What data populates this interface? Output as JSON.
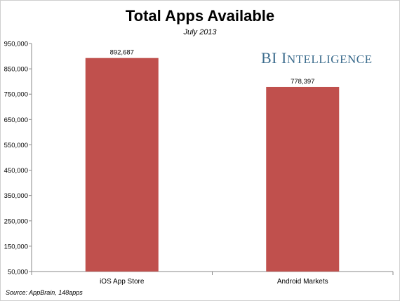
{
  "chart_data": {
    "type": "bar",
    "title": "Total Apps Available",
    "subtitle": "July 2013",
    "categories": [
      "iOS App Store",
      "Android Markets"
    ],
    "values": [
      892687,
      778397
    ],
    "value_labels": [
      "892,687",
      "778,397"
    ],
    "ylim": [
      50000,
      950000
    ],
    "yticks": [
      50000,
      150000,
      250000,
      350000,
      450000,
      550000,
      650000,
      750000,
      850000,
      950000
    ],
    "ytick_labels": [
      "50,000",
      "150,000",
      "250,000",
      "350,000",
      "450,000",
      "550,000",
      "650,000",
      "750,000",
      "850,000",
      "950,000"
    ],
    "xlabel": "",
    "ylabel": "",
    "grid": false,
    "bar_color": "#c0504d"
  },
  "brand": {
    "first": "BI I",
    "rest": "NTELLIGENCE",
    "color": "#3d6d8e"
  },
  "source": "Source: AppBrain, 148apps"
}
